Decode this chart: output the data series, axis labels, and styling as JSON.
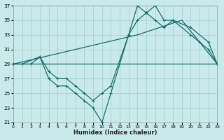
{
  "xlabel": "Humidex (Indice chaleur)",
  "xlim": [
    0,
    23
  ],
  "ylim": [
    21,
    37
  ],
  "yticks": [
    21,
    23,
    25,
    27,
    29,
    31,
    33,
    35,
    37
  ],
  "xticks": [
    0,
    1,
    2,
    3,
    4,
    5,
    6,
    7,
    8,
    9,
    10,
    11,
    12,
    13,
    14,
    15,
    16,
    17,
    18,
    19,
    20,
    21,
    22,
    23
  ],
  "bg_color": "#c8eaea",
  "grid_color": "#aad0d0",
  "line_color": "#1a6b6b",
  "line1_x": [
    0,
    1,
    3,
    4,
    5,
    6,
    7,
    8,
    9,
    10,
    11,
    13,
    14,
    15,
    16,
    17,
    18,
    20,
    22,
    23
  ],
  "line1_y": [
    29,
    29,
    30,
    27,
    26,
    26,
    25,
    24,
    23,
    21,
    25,
    33,
    37,
    36,
    37,
    35,
    35,
    34,
    32,
    29
  ],
  "line2_x": [
    0,
    2,
    3,
    4,
    5,
    6,
    7,
    8,
    9,
    10,
    11,
    13,
    14,
    15,
    16,
    17,
    18,
    20,
    21,
    22,
    23
  ],
  "line2_y": [
    29,
    29,
    30,
    28,
    27,
    27,
    26,
    25,
    24,
    25,
    26,
    33,
    35,
    36,
    35,
    34,
    35,
    33,
    32,
    31,
    29
  ],
  "line3_x": [
    0,
    23
  ],
  "line3_y": [
    29,
    29
  ],
  "line4_x": [
    0,
    14,
    19,
    23
  ],
  "line4_y": [
    29,
    33,
    35,
    29
  ]
}
